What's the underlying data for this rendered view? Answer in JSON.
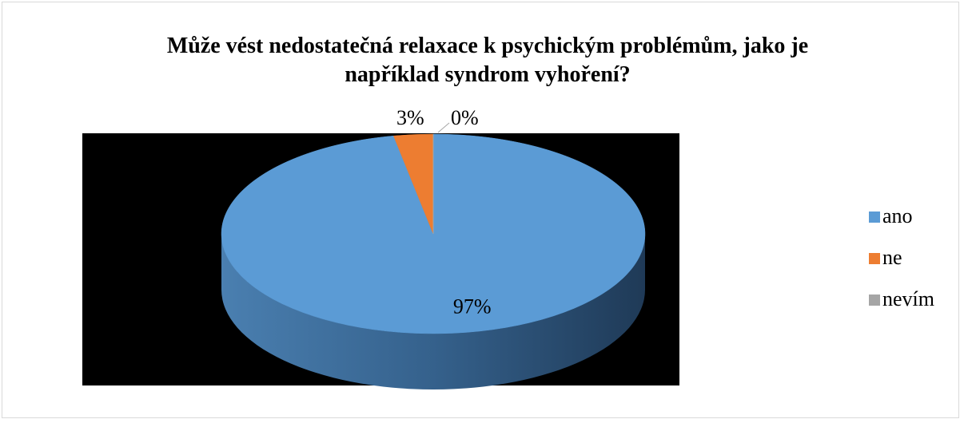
{
  "chart_data": {
    "type": "pie",
    "title": "Může vést nedostatečná relaxace k psychickým problémům, jako je například syndrom vyhoření?",
    "categories": [
      "ano",
      "ne",
      "nevím"
    ],
    "values": [
      97,
      3,
      0
    ],
    "value_labels": [
      "97%",
      "3%",
      "0%"
    ],
    "colors": [
      "#5b9bd5",
      "#ed7d31",
      "#a5a5a5"
    ],
    "legend": "right"
  }
}
